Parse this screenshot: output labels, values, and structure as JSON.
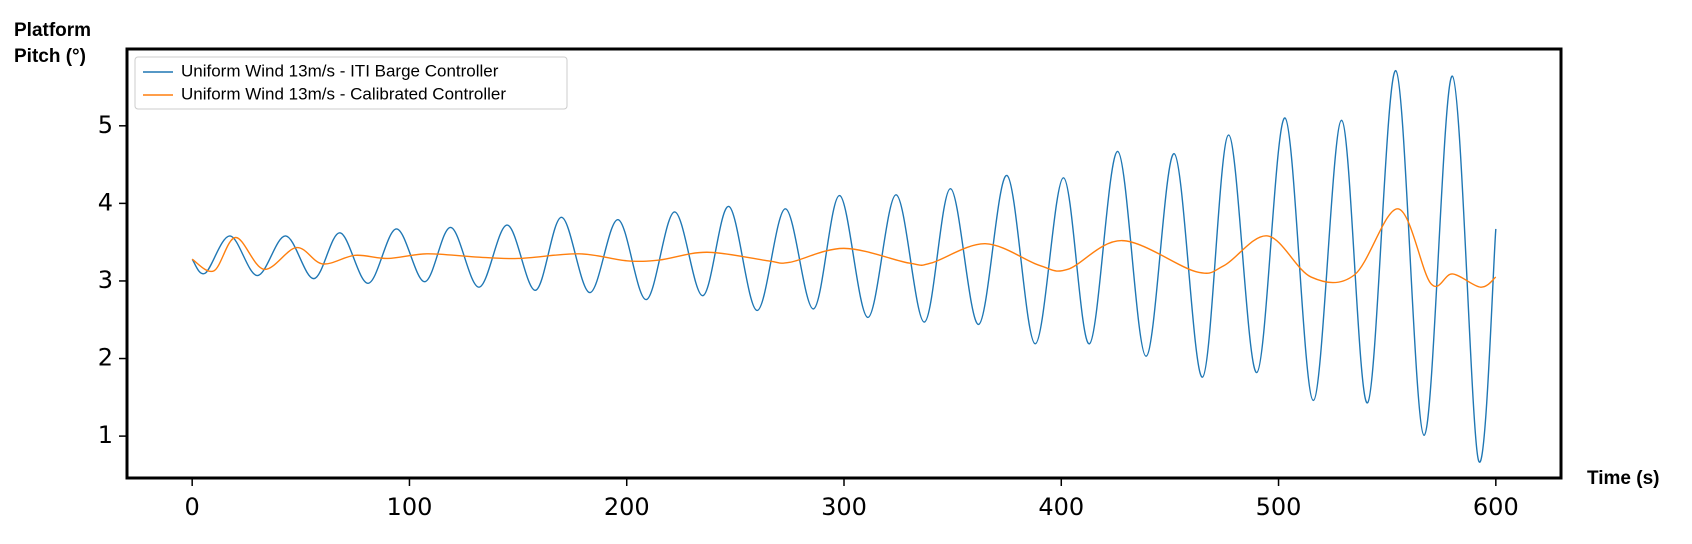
{
  "chart_data": {
    "type": "line",
    "xlabel": "Time (s)",
    "ylabel": "Platform Pitch (°)",
    "xlim": [
      -30,
      630
    ],
    "ylim": [
      0.46,
      5.99
    ],
    "xticks": [
      0,
      100,
      200,
      300,
      400,
      500,
      600
    ],
    "yticks": [
      1,
      2,
      3,
      4,
      5
    ],
    "grid": false,
    "legend": "upper left",
    "series": [
      {
        "name": "Uniform Wind 13m/s - ITI Barge Controller",
        "color": "#1f77b4",
        "x": [
          0,
          6,
          17.4,
          30,
          43,
          56,
          68,
          81,
          94,
          107,
          119,
          132,
          145,
          158,
          170,
          183,
          196,
          209,
          222,
          235,
          247,
          260,
          273,
          286,
          298,
          311,
          324,
          337,
          349,
          362,
          375,
          388,
          401,
          413,
          426,
          439,
          452,
          465,
          477,
          490,
          503,
          516,
          529,
          541,
          554,
          567,
          580,
          592,
          600
        ],
        "values": [
          3.28,
          3.1,
          3.58,
          3.07,
          3.58,
          3.03,
          3.62,
          2.97,
          3.67,
          2.99,
          3.69,
          2.92,
          3.72,
          2.88,
          3.82,
          2.85,
          3.79,
          2.76,
          3.89,
          2.81,
          3.96,
          2.62,
          3.93,
          2.64,
          4.1,
          2.53,
          4.11,
          2.47,
          4.19,
          2.44,
          4.36,
          2.19,
          4.33,
          2.19,
          4.67,
          2.03,
          4.64,
          1.76,
          4.88,
          1.82,
          5.1,
          1.46,
          5.07,
          1.43,
          5.71,
          1.01,
          5.64,
          0.69,
          3.67
        ]
      },
      {
        "name": "Uniform Wind 13m/s - Calibrated Controller",
        "color": "#ff7f0e",
        "x": [
          0,
          10,
          20,
          33,
          48,
          60,
          75,
          90,
          108,
          130,
          150,
          178,
          200,
          215,
          237,
          265,
          275,
          300,
          330,
          340,
          365,
          390,
          403,
          428,
          462,
          475,
          495,
          515,
          535,
          555,
          570,
          580,
          593,
          600
        ],
        "values": [
          3.28,
          3.13,
          3.56,
          3.15,
          3.43,
          3.22,
          3.33,
          3.29,
          3.35,
          3.31,
          3.29,
          3.35,
          3.26,
          3.27,
          3.37,
          3.26,
          3.24,
          3.42,
          3.23,
          3.23,
          3.48,
          3.2,
          3.15,
          3.52,
          3.12,
          3.2,
          3.58,
          3.05,
          3.08,
          3.93,
          2.97,
          3.09,
          2.92,
          3.05
        ]
      }
    ]
  }
}
